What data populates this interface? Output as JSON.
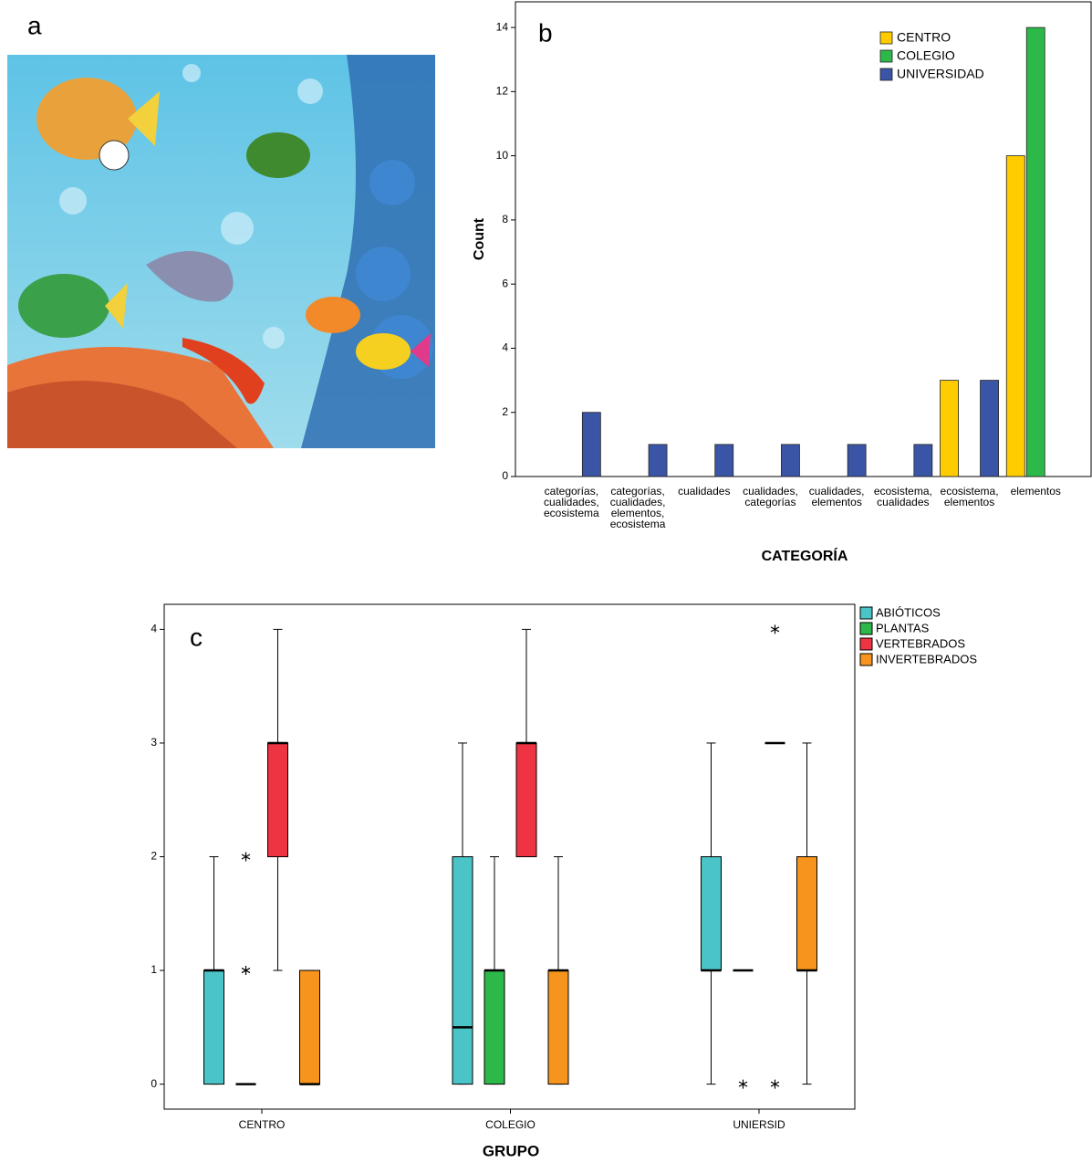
{
  "panel_a": {
    "label": "a"
  },
  "chart_data": [
    {
      "type": "bar",
      "label": "b",
      "x_label": "CATEGORÍA",
      "y_label": "Count",
      "categories": [
        "categorías,\ncualidades,\necosistema",
        "categorías,\ncualidades,\nelementos,\necosistema",
        "cualidades",
        "cualidades,\ncategorías",
        "cualidades,\nelementos",
        "ecosistema,\ncualidades",
        "ecosistema,\nelementos",
        "elementos"
      ],
      "series": [
        {
          "name": "CENTRO",
          "color": "#ffcc00",
          "values": [
            0,
            0,
            0,
            0,
            0,
            0,
            3,
            10
          ]
        },
        {
          "name": "COLEGIO",
          "color": "#2db84a",
          "values": [
            0,
            0,
            0,
            0,
            0,
            0,
            0,
            14
          ]
        },
        {
          "name": "UNIVERSIDAD",
          "color": "#3a55a6",
          "values": [
            2,
            1,
            1,
            1,
            1,
            1,
            3,
            0
          ]
        }
      ],
      "ylim": [
        0,
        14.8
      ],
      "yticks": [
        0,
        2,
        4,
        6,
        8,
        10,
        12,
        14
      ]
    },
    {
      "type": "boxplot",
      "label": "c",
      "x_label": "GRUPO",
      "categories": [
        "CENTRO",
        "COLEGIO",
        "UNIERSID"
      ],
      "series": [
        {
          "name": "ABIÓTICOS",
          "color": "#4bc4c8",
          "boxes": [
            {
              "min": 0,
              "q1": 0,
              "median": 1,
              "q3": 1,
              "max": 2,
              "outliers": []
            },
            {
              "min": 0,
              "q1": 0,
              "median": 0.5,
              "q3": 2,
              "max": 3,
              "outliers": []
            },
            {
              "min": 0,
              "q1": 1,
              "median": 1,
              "q3": 2,
              "max": 3,
              "outliers": []
            }
          ]
        },
        {
          "name": "PLANTAS",
          "color": "#2db84a",
          "boxes": [
            {
              "min": 0,
              "q1": 0,
              "median": 0,
              "q3": 0,
              "max": 0,
              "outliers": [
                1,
                2
              ]
            },
            {
              "min": 0,
              "q1": 0,
              "median": 1,
              "q3": 1,
              "max": 2,
              "outliers": []
            },
            {
              "min": 1,
              "q1": 1,
              "median": 1,
              "q3": 1,
              "max": 1,
              "outliers": [
                0
              ]
            }
          ]
        },
        {
          "name": "VERTEBRADOS",
          "color": "#ee3342",
          "boxes": [
            {
              "min": 1,
              "q1": 2,
              "median": 3,
              "q3": 3,
              "max": 4,
              "outliers": []
            },
            {
              "min": 2,
              "q1": 2,
              "median": 3,
              "q3": 3,
              "max": 4,
              "outliers": []
            },
            {
              "min": 3,
              "q1": 3,
              "median": 3,
              "q3": 3,
              "max": 3,
              "outliers": [
                4,
                0
              ]
            }
          ]
        },
        {
          "name": "INVERTEBRADOS",
          "color": "#f7941d",
          "boxes": [
            {
              "min": 0,
              "q1": 0,
              "median": 0,
              "q3": 1,
              "max": 1,
              "outliers": []
            },
            {
              "min": 0,
              "q1": 0,
              "median": 1,
              "q3": 1,
              "max": 2,
              "outliers": []
            },
            {
              "min": 0,
              "q1": 1,
              "median": 1,
              "q3": 2,
              "max": 3,
              "outliers": []
            }
          ]
        }
      ],
      "ylim": [
        -0.22,
        4.22
      ],
      "yticks": [
        0,
        1,
        2,
        3,
        4
      ]
    }
  ]
}
